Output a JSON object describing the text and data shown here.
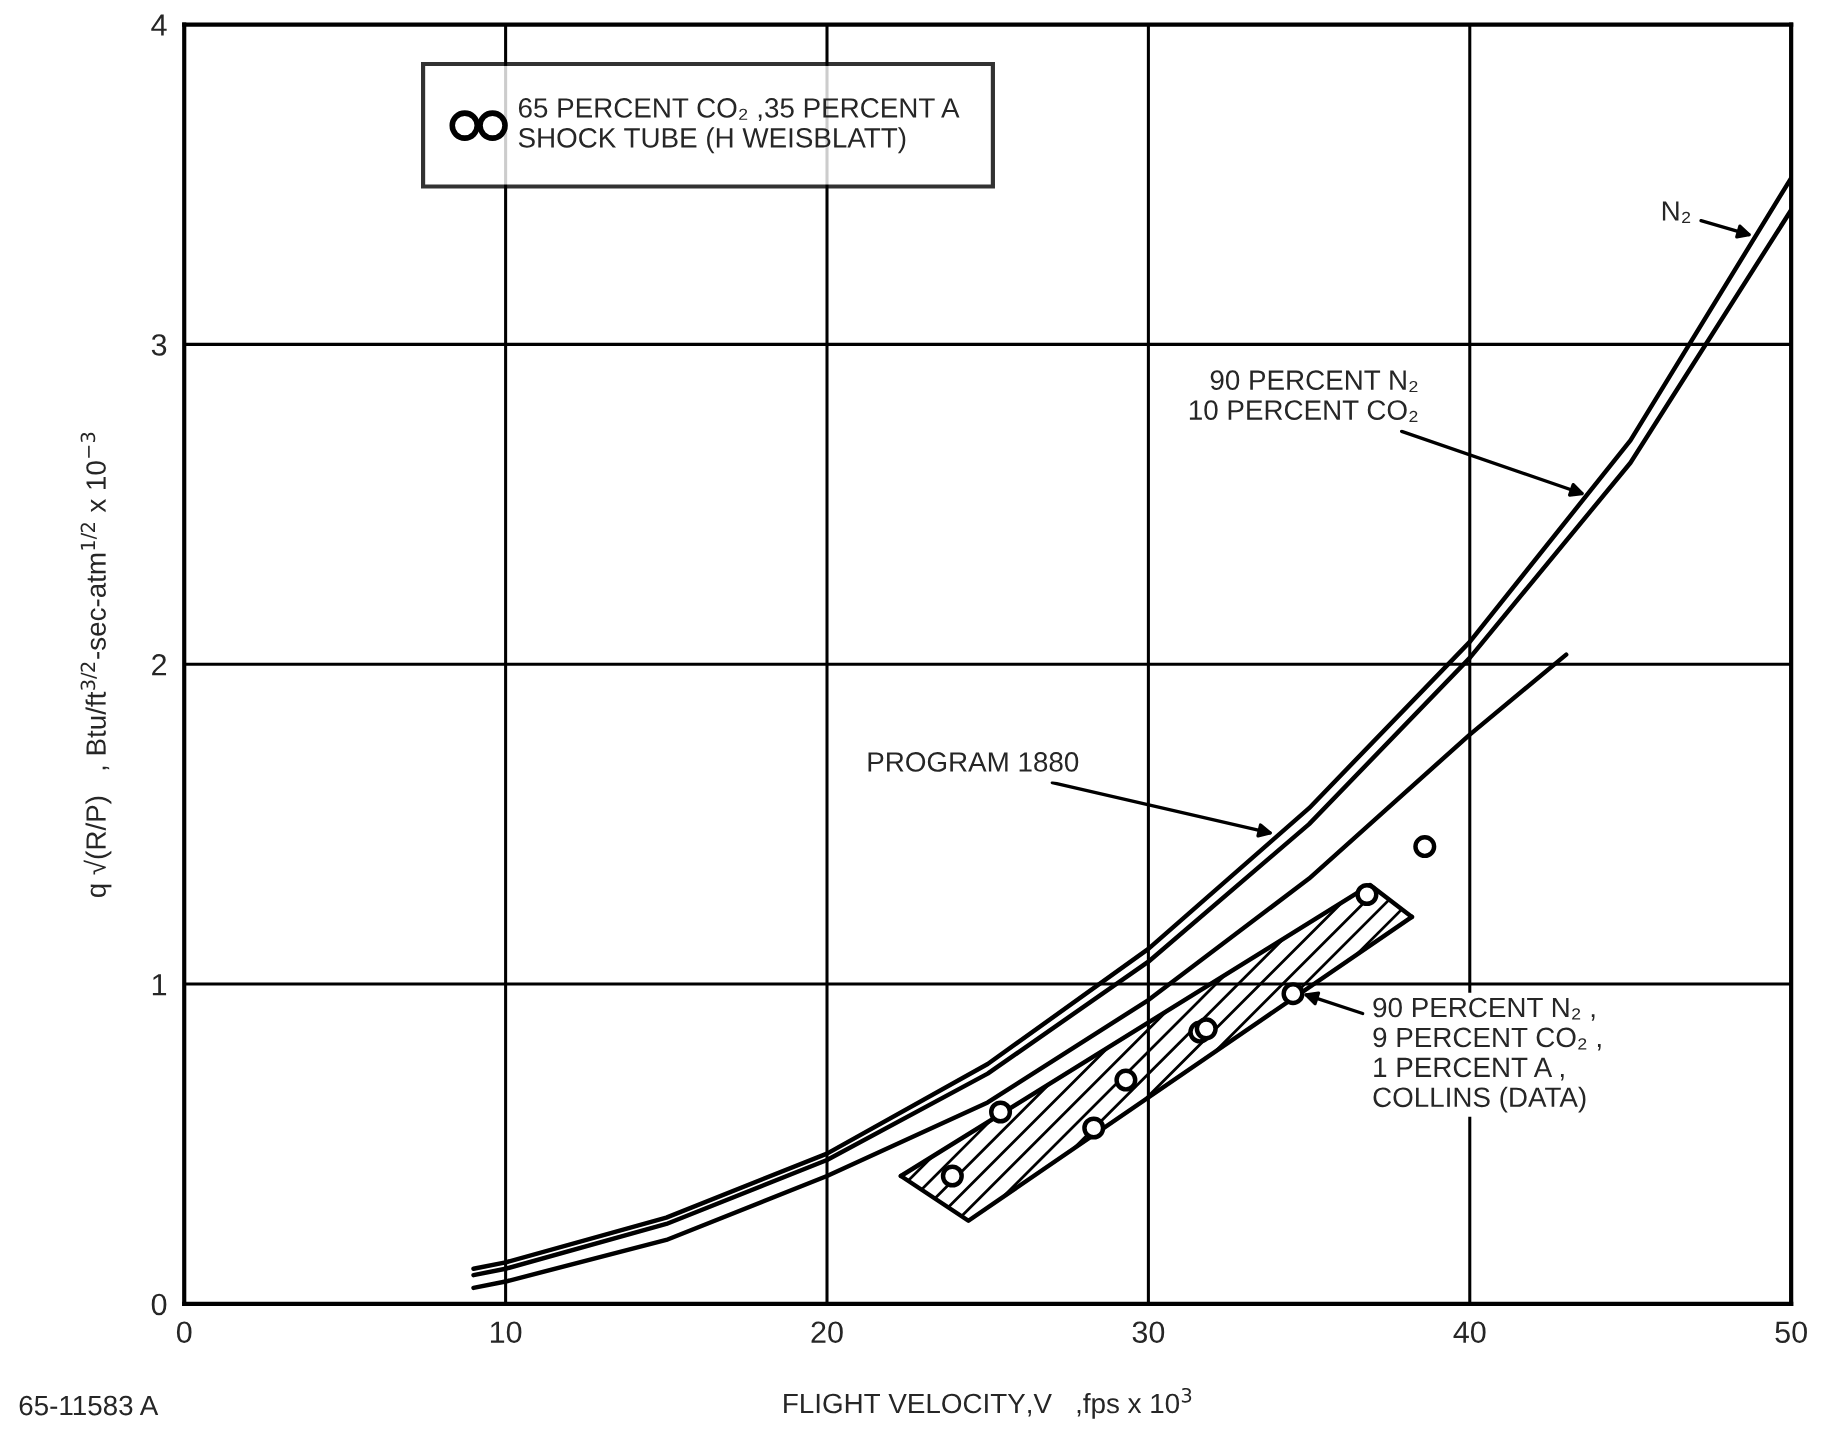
{
  "chart_data": {
    "type": "line",
    "xlabel": "FLIGHT VELOCITY,V   ,fps x 10$^{3}$",
    "ylabel": "q √(R/P)   , Btu/ft$^{3/2}$-sec-atm$^{1/2}$ x 10$^{−3}$",
    "xlim": [
      0,
      50
    ],
    "xticks": [
      0,
      10,
      20,
      30,
      40,
      50
    ],
    "ylim": [
      0,
      4
    ],
    "yticks": [
      0,
      1,
      2,
      3,
      4
    ],
    "grid": true,
    "legend": "top left",
    "series": [
      {
        "color": "#000000",
        "x": [
          9,
          10,
          15,
          20,
          25,
          30,
          35,
          40,
          45,
          50
        ],
        "values": [
          0.11,
          0.13,
          0.27,
          0.47,
          0.75,
          1.11,
          1.55,
          2.07,
          2.7,
          3.52
        ]
      },
      {
        "color": "#000000",
        "x": [
          9,
          10,
          15,
          20,
          25,
          30,
          35,
          40,
          45,
          50
        ],
        "values": [
          0.09,
          0.11,
          0.25,
          0.45,
          0.72,
          1.07,
          1.5,
          2.02,
          2.63,
          3.42
        ]
      },
      {
        "color": "#000000",
        "x": [
          9,
          10,
          15,
          20,
          25,
          30,
          35,
          40,
          43
        ],
        "values": [
          0.05,
          0.07,
          0.2,
          0.4,
          0.63,
          0.95,
          1.33,
          1.78,
          2.03
        ]
      },
      {
        "type": "line",
        "color": "#000000",
        "x": [
          22.3,
          36.9,
          38.2
        ],
        "values": [
          0.4,
          1.31,
          1.21
        ]
      },
      {
        "type": "line",
        "color": "#000000",
        "x": [
          22.3,
          24.4,
          38.2
        ],
        "values": [
          0.4,
          0.26,
          1.21
        ]
      },
      {
        "type": "scatter",
        "name": "65 PERCENT CO₂ ,35 PERCENT A\nSHOCK TUBE (H WEISBLATT)",
        "color": "#000000",
        "marker": "circle",
        "x": [
          23.9,
          25.4,
          28.3,
          29.3,
          31.6,
          31.8,
          34.5,
          36.8,
          38.6
        ],
        "values": [
          0.4,
          0.6,
          0.55,
          0.7,
          0.85,
          0.86,
          0.97,
          1.28,
          1.43
        ]
      }
    ],
    "annotations": [
      {
        "text": "N₂",
        "x": 48.8,
        "y": 3.34
      },
      {
        "text": "90 PERCENT N₂\n10 PERCENT CO₂",
        "x": 43.6,
        "y": 2.53
      },
      {
        "text": "PROGRAM 1880",
        "x": 33.9,
        "y": 1.47
      },
      {
        "text": "90 PERCENT N₂ ,\n9 PERCENT CO₂ ,\n1 PERCENT A ,\nCOLLINS (DATA)",
        "x": 34.8,
        "y": 0.97
      },
      "65-11583 A"
    ]
  }
}
